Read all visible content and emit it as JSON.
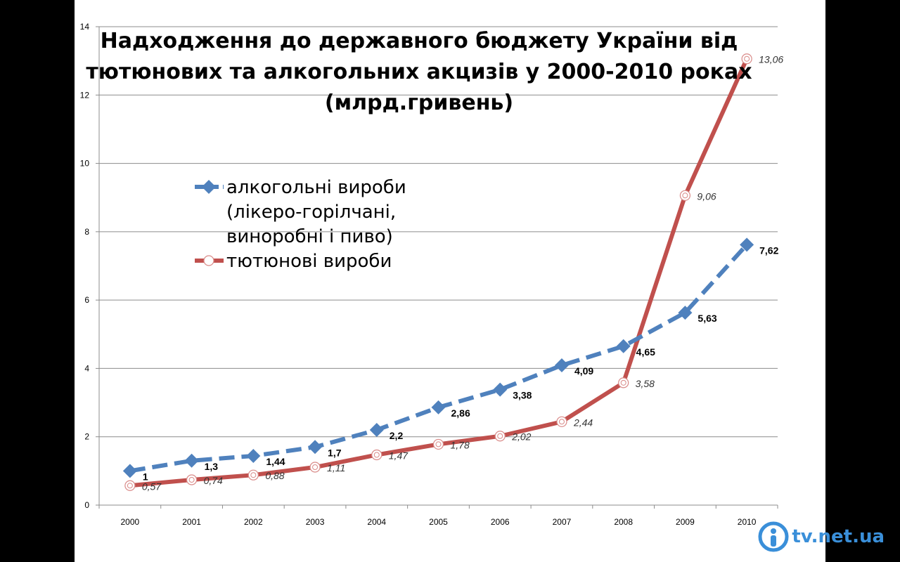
{
  "chart_data": {
    "type": "line",
    "title_lines": [
      "Надходження до державного бюджету України від",
      "тютюнових та  алкогольних  акцизів у 2000-2010 роках",
      "(млрд.гривень)"
    ],
    "categories": [
      "2000",
      "2001",
      "2002",
      "2003",
      "2004",
      "2005",
      "2006",
      "2007",
      "2008",
      "2009",
      "2010"
    ],
    "ylim": [
      0,
      14
    ],
    "yticks": [
      0,
      2,
      4,
      6,
      8,
      10,
      12,
      14
    ],
    "grid": true,
    "legend_position": "center-left",
    "series": [
      {
        "name_lines": [
          "алкогольні вироби",
          "(лікеро-горілчані,",
          "виноробні і пиво)"
        ],
        "values": [
          1,
          1.3,
          1.44,
          1.7,
          2.2,
          2.86,
          3.38,
          4.09,
          4.65,
          5.63,
          7.62
        ],
        "labels": [
          "1",
          "1,3",
          "1,44",
          "1,7",
          "2,2",
          "2,86",
          "3,38",
          "4,09",
          "4,65",
          "5,63",
          "7,62"
        ],
        "color": "#4f81bd",
        "style": "dashed",
        "marker": "diamond"
      },
      {
        "name_lines": [
          "тютюнові вироби"
        ],
        "values": [
          0.57,
          0.74,
          0.88,
          1.11,
          1.47,
          1.78,
          2.02,
          2.44,
          3.58,
          9.06,
          13.06
        ],
        "labels": [
          "0,57",
          "0,74",
          "0,88",
          "1,11",
          "1,47",
          "1,78",
          "2,02",
          "2,44",
          "3,58",
          "9,06",
          "13,06"
        ],
        "color": "#c0504d",
        "style": "solid",
        "marker": "circle"
      }
    ]
  },
  "watermark": {
    "text": "tv.net.ua",
    "icon": "person-circle-icon",
    "color": "#3a8fd9"
  }
}
